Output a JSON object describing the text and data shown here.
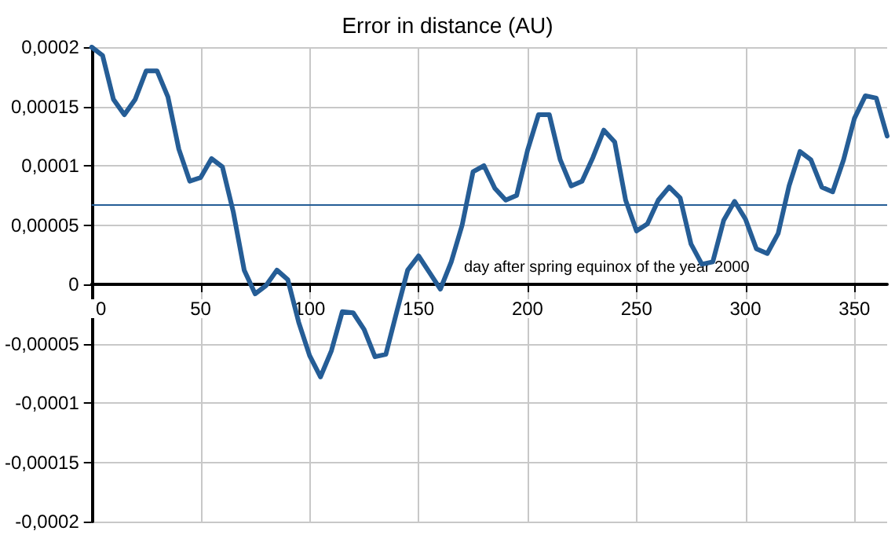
{
  "chart_data": {
    "type": "line",
    "title": "Error in distance (AU)",
    "xlabel": "day after spring equinox of the year 2000",
    "x": [
      0,
      5,
      10,
      15,
      20,
      25,
      30,
      35,
      40,
      45,
      50,
      55,
      60,
      65,
      70,
      75,
      80,
      85,
      90,
      95,
      100,
      105,
      110,
      115,
      120,
      125,
      130,
      135,
      140,
      145,
      150,
      155,
      160,
      165,
      170,
      175,
      180,
      185,
      190,
      195,
      200,
      205,
      210,
      215,
      220,
      225,
      230,
      235,
      240,
      245,
      250,
      255,
      260,
      265,
      270,
      275,
      280,
      285,
      290,
      295,
      300,
      305,
      310,
      315,
      320,
      325,
      330,
      335,
      340,
      345,
      350,
      355,
      360,
      365
    ],
    "series": [
      {
        "color": "#255d96",
        "values": [
          0.0002,
          0.000193,
          0.000156,
          0.000143,
          0.000156,
          0.00018,
          0.00018,
          0.000158,
          0.000114,
          8.7e-05,
          9e-05,
          0.000106,
          9.9e-05,
          6.1e-05,
          1.2e-05,
          -8e-06,
          -1e-06,
          1.2e-05,
          4e-06,
          -3.2e-05,
          -6e-05,
          -7.8e-05,
          -5.6e-05,
          -2.3e-05,
          -2.4e-05,
          -3.8e-05,
          -6.1e-05,
          -5.9e-05,
          -2.3e-05,
          1.2e-05,
          2.4e-05,
          1e-05,
          -4e-06,
          1.9e-05,
          5e-05,
          9.5e-05,
          0.0001,
          8.1e-05,
          7.1e-05,
          7.5e-05,
          0.000113,
          0.000143,
          0.000143,
          0.000105,
          8.3e-05,
          8.7e-05,
          0.000107,
          0.00013,
          0.00012,
          7.1e-05,
          4.5e-05,
          5.1e-05,
          7.1e-05,
          8.2e-05,
          7.3e-05,
          3.4e-05,
          1.7e-05,
          1.9e-05,
          5.4e-05,
          7e-05,
          5.5e-05,
          3e-05,
          2.6e-05,
          4.3e-05,
          8.3e-05,
          0.000112,
          0.000105,
          8.2e-05,
          7.8e-05,
          0.000105,
          0.00014,
          0.000159,
          0.000157,
          0.000125
        ]
      }
    ],
    "xlim": [
      0,
      365
    ],
    "xticks": [
      0,
      50,
      100,
      150,
      200,
      250,
      300,
      350
    ],
    "ylim": [
      -0.0002,
      0.0002
    ],
    "yticks": [
      {
        "value": -0.0002,
        "label": "-0,0002"
      },
      {
        "value": -0.00015,
        "label": "-0,00015"
      },
      {
        "value": -0.0001,
        "label": "-0,0001"
      },
      {
        "value": -5e-05,
        "label": "-0,00005"
      },
      {
        "value": 0,
        "label": "0"
      },
      {
        "value": 5e-05,
        "label": "0,00005"
      },
      {
        "value": 0.0001,
        "label": "0,0001"
      },
      {
        "value": 0.00015,
        "label": "0,00015"
      },
      {
        "value": 0.0002,
        "label": "0,0002"
      }
    ],
    "ref_lines": [
      {
        "axis": "y",
        "value": 6.7e-05,
        "color": "#255d96"
      }
    ],
    "grid": true,
    "marker": "none",
    "line_style": "solid"
  }
}
